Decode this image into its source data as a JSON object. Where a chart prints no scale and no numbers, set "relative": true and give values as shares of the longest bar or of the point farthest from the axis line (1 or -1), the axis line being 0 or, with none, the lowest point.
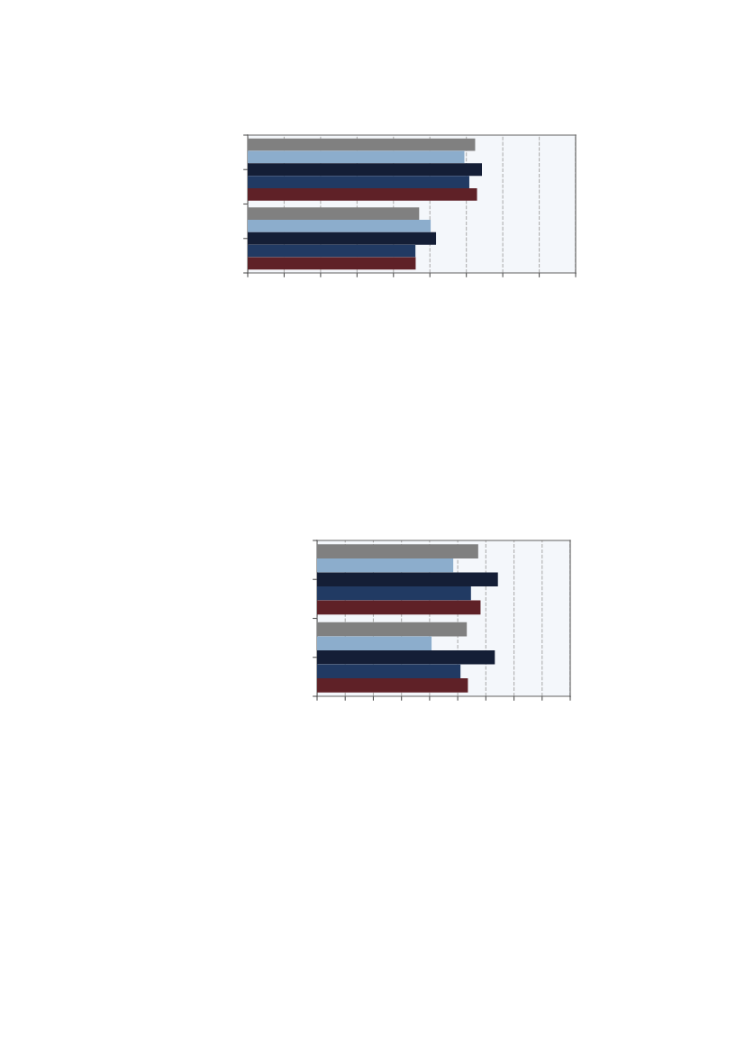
{
  "chart_data": [
    {
      "type": "bar",
      "orientation": "horizontal",
      "relative": true,
      "categories": [
        null,
        null
      ],
      "grid": "x",
      "series": [
        {
          "color": "#808080",
          "values": [
            0.971,
            0.732
          ]
        },
        {
          "color": "#8cadcc",
          "values": [
            0.925,
            0.781
          ]
        },
        {
          "color": "#141e36",
          "values": [
            1,
            0.804
          ]
        },
        {
          "color": "#213a63",
          "values": [
            0.946,
            0.716
          ]
        },
        {
          "color": "#5f2127",
          "values": [
            0.979,
            0.717
          ]
        }
      ]
    },
    {
      "type": "bar",
      "orientation": "horizontal",
      "relative": true,
      "categories": [
        null,
        null
      ],
      "grid": "x",
      "series": [
        {
          "color": "#808080",
          "values": [
            0.891,
            0.828
          ]
        },
        {
          "color": "#8cadcc",
          "values": [
            0.753,
            0.633
          ]
        },
        {
          "color": "#141e36",
          "values": [
            1,
            0.983
          ]
        },
        {
          "color": "#213a63",
          "values": [
            0.851,
            0.793
          ]
        },
        {
          "color": "#5f2127",
          "values": [
            0.904,
            0.834
          ]
        }
      ]
    }
  ]
}
